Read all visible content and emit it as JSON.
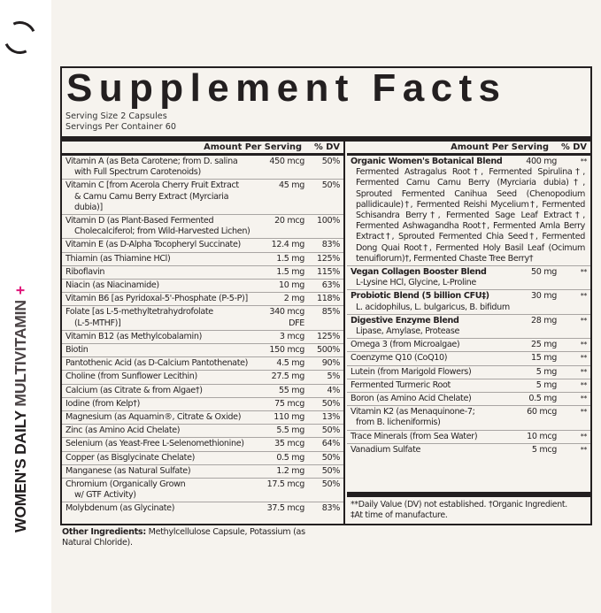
{
  "brand": {
    "line1": "WOMEN'S DAILY",
    "line2": "MULTIVITAMIN",
    "plus": "+"
  },
  "title": "Supplement Facts",
  "serving_size": "Serving Size 2 Capsules",
  "servings_per_container": "Servings Per Container 60",
  "header": {
    "amount": "Amount Per Serving",
    "dv": "% DV"
  },
  "left_rows": [
    {
      "name": "Vitamin A (as Beta Carotene; from D. salina",
      "name2": "with Full Spectrum Carotenoids)",
      "amount": "450 mcg",
      "dv": "50%"
    },
    {
      "name": "Vitamin C [from Acerola Cherry Fruit Extract",
      "name2": "& Camu Camu Berry Extract (Myrciaria dubia)]",
      "amount": "45 mg",
      "dv": "50%"
    },
    {
      "name": "Vitamin D (as Plant-Based Fermented",
      "name2": "Cholecalciferol; from Wild-Harvested Lichen)",
      "amount": "20 mcg",
      "dv": "100%"
    },
    {
      "name": "Vitamin E (as D-Alpha Tocopheryl Succinate)",
      "amount": "12.4 mg",
      "dv": "83%"
    },
    {
      "name": "Thiamin (as Thiamine HCl)",
      "amount": "1.5 mg",
      "dv": "125%"
    },
    {
      "name": "Riboflavin",
      "amount": "1.5 mg",
      "dv": "115%"
    },
    {
      "name": "Niacin (as Niacinamide)",
      "amount": "10 mg",
      "dv": "63%"
    },
    {
      "name": "Vitamin B6 [as Pyridoxal-5'-Phosphate (P-5-P)]",
      "amount": "2 mg",
      "dv": "118%"
    },
    {
      "name": "Folate [as L-5-methyltetrahydrofolate",
      "name2": "(L-5-MTHF)]",
      "amount": "340 mcg",
      "amount2": "DFE",
      "dv": "85%"
    },
    {
      "name": "Vitamin B12 (as Methylcobalamin)",
      "amount": "3 mcg",
      "dv": "125%"
    },
    {
      "name": "Biotin",
      "amount": "150 mcg",
      "dv": "500%"
    },
    {
      "name": "Pantothenic Acid (as D-Calcium Pantothenate)",
      "amount": "4.5 mg",
      "dv": "90%"
    },
    {
      "name": "Choline (from Sunflower Lecithin)",
      "amount": "27.5 mg",
      "dv": "5%"
    },
    {
      "name": "Calcium (as Citrate & from Algae†)",
      "amount": "55 mg",
      "dv": "4%"
    },
    {
      "name": "Iodine (from Kelp†)",
      "amount": "75 mcg",
      "dv": "50%"
    },
    {
      "name": "Magnesium (as Aquamin®, Citrate & Oxide)",
      "amount": "110 mg",
      "dv": "13%"
    },
    {
      "name": "Zinc (as Amino Acid Chelate)",
      "amount": "5.5 mg",
      "dv": "50%"
    },
    {
      "name": "Selenium (as Yeast-Free L-Selenomethionine)",
      "amount": "35 mcg",
      "dv": "64%"
    },
    {
      "name": "Copper (as Bisglycinate Chelate)",
      "amount": "0.5 mg",
      "dv": "50%"
    },
    {
      "name": "Manganese (as Natural Sulfate)",
      "amount": "1.2 mg",
      "dv": "50%"
    },
    {
      "name": "Chromium (Organically Grown",
      "name2": "w/ GTF Activity)",
      "amount": "17.5 mcg",
      "dv": "50%"
    },
    {
      "name": "Molybdenum (as Glycinate)",
      "amount": "37.5 mcg",
      "dv": "83%"
    }
  ],
  "right_rows": [
    {
      "name": "Organic Women's Botanical Blend",
      "bold": true,
      "amount": "400 mg",
      "dv": "**",
      "detail": "Fermented Astragalus Root†, Fermented Spirulina†, Fermented Camu Camu Berry (Myrciaria dubia)†, Sprouted Fermented Canihua Seed (Chenopodium pallidicaule)†, Fermented Reishi Mycelium†, Fermented Schisandra Berry†, Fermented Sage Leaf Extract†, Fermented Ashwagandha Root†, Fermented Amla Berry Extract†, Sprouted Fermented Chia Seed†, Fermented Dong Quai Root†, Fermented Holy Basil Leaf (Ocimum tenuiflorum)†, Fermented Chaste Tree Berry†"
    },
    {
      "name": "Vegan Collagen Booster Blend",
      "bold": true,
      "amount": "50 mg",
      "dv": "**",
      "detail": "L-Lysine HCl, Glycine, L-Proline"
    },
    {
      "name": "Probiotic Blend (5 billion CFU‡)",
      "bold": true,
      "amount": "30 mg",
      "dv": "**",
      "detail": "L. acidophilus, L. bulgaricus, B. bifidum"
    },
    {
      "name": "Digestive Enzyme Blend",
      "bold": true,
      "amount": "28 mg",
      "dv": "**",
      "detail": "Lipase, Amylase, Protease"
    },
    {
      "name": "Omega 3 (from Microalgae)",
      "amount": "25 mg",
      "dv": "**"
    },
    {
      "name": "Coenzyme Q10 (CoQ10)",
      "amount": "15 mg",
      "dv": "**"
    },
    {
      "name": "Lutein (from Marigold Flowers)",
      "amount": "5 mg",
      "dv": "**"
    },
    {
      "name": "Fermented Turmeric Root",
      "amount": "5 mg",
      "dv": "**"
    },
    {
      "name": "Boron (as Amino Acid Chelate)",
      "amount": "0.5 mg",
      "dv": "**"
    },
    {
      "name": "Vitamin K2 (as Menaquinone-7;",
      "detail": "from B. licheniformis)",
      "amount": "60 mcg",
      "dv": "**"
    },
    {
      "name": "Trace Minerals (from Sea Water)",
      "amount": "10 mcg",
      "dv": "**"
    },
    {
      "name": "Vanadium Sulfate",
      "amount": "5 mcg",
      "dv": "**"
    }
  ],
  "footnote1": "**Daily Value (DV) not established.  †Organic Ingredient.",
  "footnote2": "‡At time of manufacture.",
  "other_label": "Other Ingredients:",
  "other_text": " Methylcellulose Capsule, Potassium (as Natural Chloride)."
}
